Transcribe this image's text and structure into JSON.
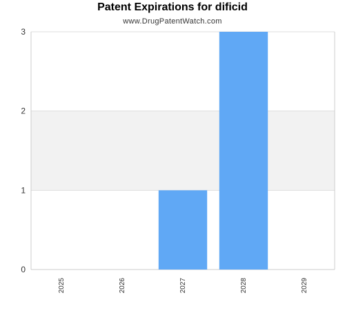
{
  "chart_data": {
    "type": "bar",
    "title": "Patent Expirations for dificid",
    "subtitle": "www.DrugPatentWatch.com",
    "xlabel": "",
    "ylabel": "",
    "categories": [
      "2025",
      "2026",
      "2027",
      "2028",
      "2029"
    ],
    "values": [
      0,
      0,
      1,
      3,
      0
    ],
    "ylim": [
      0,
      3
    ],
    "yticks": [
      "0",
      "1",
      "2",
      "3"
    ],
    "grid": "horizontal bands",
    "legend": "none",
    "colors": {
      "bar": "#60a8f5",
      "band": "#f2f2f2",
      "grid": "#dddddd",
      "axis": "#cccccc",
      "text": "#333333"
    }
  }
}
